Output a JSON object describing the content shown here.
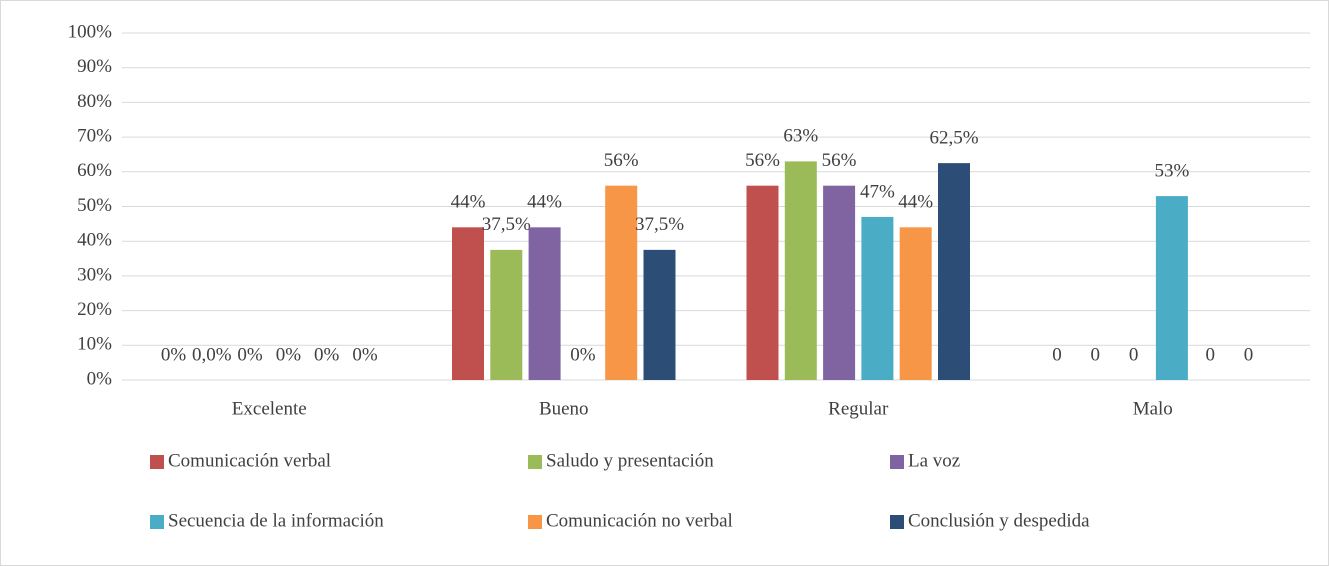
{
  "chart_data": {
    "type": "bar",
    "categories": [
      "Excelente",
      "Bueno",
      "Regular",
      "Malo"
    ],
    "series": [
      {
        "name": "Comunicación verbal",
        "color": "#c0504d",
        "values": [
          0,
          44,
          56,
          0
        ],
        "value_labels": [
          "0%",
          "44%",
          "56%",
          "0"
        ]
      },
      {
        "name": "Saludo y presentación",
        "color": "#9bbb59",
        "values": [
          0,
          37.5,
          63,
          0
        ],
        "value_labels": [
          "0,0%",
          "37,5%",
          "63%",
          "0"
        ]
      },
      {
        "name": "La voz",
        "color": "#8064a2",
        "values": [
          0,
          44,
          56,
          0
        ],
        "value_labels": [
          "0%",
          "44%",
          "56%",
          "0"
        ]
      },
      {
        "name": "Secuencia de la información",
        "color": "#4bacc6",
        "values": [
          0,
          0,
          47,
          53
        ],
        "value_labels": [
          "0%",
          "0%",
          "47%",
          "53%"
        ]
      },
      {
        "name": "Comunicación no verbal",
        "color": "#f79646",
        "values": [
          0,
          56,
          44,
          0
        ],
        "value_labels": [
          "0%",
          "56%",
          "44%",
          "0"
        ]
      },
      {
        "name": "Conclusión y despedida",
        "color": "#2c4d75",
        "values": [
          0,
          37.5,
          62.5,
          0
        ],
        "value_labels": [
          "0%",
          "37,5%",
          "62,5%",
          "0"
        ]
      }
    ],
    "ylim": [
      0,
      100
    ],
    "yticks": [
      {
        "value": 0,
        "label": "0%"
      },
      {
        "value": 10,
        "label": "10%"
      },
      {
        "value": 20,
        "label": "20%"
      },
      {
        "value": 30,
        "label": "30%"
      },
      {
        "value": 40,
        "label": "40%"
      },
      {
        "value": 50,
        "label": "50%"
      },
      {
        "value": 60,
        "label": "60%"
      },
      {
        "value": 70,
        "label": "70%"
      },
      {
        "value": 80,
        "label": "80%"
      },
      {
        "value": 90,
        "label": "90%"
      },
      {
        "value": 100,
        "label": "100%"
      }
    ],
    "grid": true,
    "legend": "bottom"
  }
}
